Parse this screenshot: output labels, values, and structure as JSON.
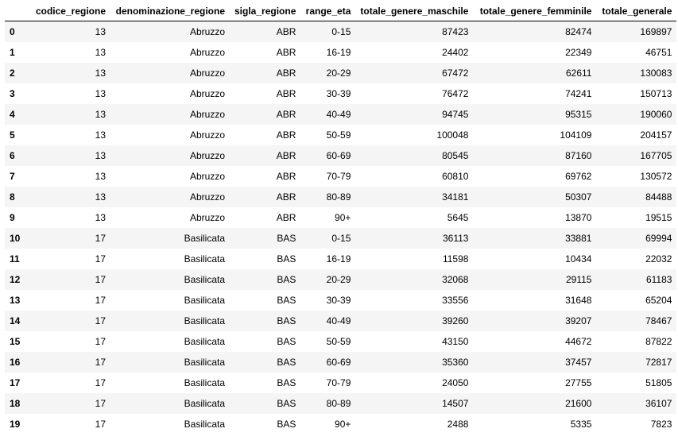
{
  "table": {
    "columns": [
      "",
      "codice_regione",
      "denominazione_regione",
      "sigla_regione",
      "range_eta",
      "totale_genere_maschile",
      "totale_genere_femminile",
      "totale_generale"
    ],
    "rows": [
      [
        "0",
        "13",
        "Abruzzo",
        "ABR",
        "0-15",
        "87423",
        "82474",
        "169897"
      ],
      [
        "1",
        "13",
        "Abruzzo",
        "ABR",
        "16-19",
        "24402",
        "22349",
        "46751"
      ],
      [
        "2",
        "13",
        "Abruzzo",
        "ABR",
        "20-29",
        "67472",
        "62611",
        "130083"
      ],
      [
        "3",
        "13",
        "Abruzzo",
        "ABR",
        "30-39",
        "76472",
        "74241",
        "150713"
      ],
      [
        "4",
        "13",
        "Abruzzo",
        "ABR",
        "40-49",
        "94745",
        "95315",
        "190060"
      ],
      [
        "5",
        "13",
        "Abruzzo",
        "ABR",
        "50-59",
        "100048",
        "104109",
        "204157"
      ],
      [
        "6",
        "13",
        "Abruzzo",
        "ABR",
        "60-69",
        "80545",
        "87160",
        "167705"
      ],
      [
        "7",
        "13",
        "Abruzzo",
        "ABR",
        "70-79",
        "60810",
        "69762",
        "130572"
      ],
      [
        "8",
        "13",
        "Abruzzo",
        "ABR",
        "80-89",
        "34181",
        "50307",
        "84488"
      ],
      [
        "9",
        "13",
        "Abruzzo",
        "ABR",
        "90+",
        "5645",
        "13870",
        "19515"
      ],
      [
        "10",
        "17",
        "Basilicata",
        "BAS",
        "0-15",
        "36113",
        "33881",
        "69994"
      ],
      [
        "11",
        "17",
        "Basilicata",
        "BAS",
        "16-19",
        "11598",
        "10434",
        "22032"
      ],
      [
        "12",
        "17",
        "Basilicata",
        "BAS",
        "20-29",
        "32068",
        "29115",
        "61183"
      ],
      [
        "13",
        "17",
        "Basilicata",
        "BAS",
        "30-39",
        "33556",
        "31648",
        "65204"
      ],
      [
        "14",
        "17",
        "Basilicata",
        "BAS",
        "40-49",
        "39260",
        "39207",
        "78467"
      ],
      [
        "15",
        "17",
        "Basilicata",
        "BAS",
        "50-59",
        "43150",
        "44672",
        "87822"
      ],
      [
        "16",
        "17",
        "Basilicata",
        "BAS",
        "60-69",
        "35360",
        "37457",
        "72817"
      ],
      [
        "17",
        "17",
        "Basilicata",
        "BAS",
        "70-79",
        "24050",
        "27755",
        "51805"
      ],
      [
        "18",
        "17",
        "Basilicata",
        "BAS",
        "80-89",
        "14507",
        "21600",
        "36107"
      ],
      [
        "19",
        "17",
        "Basilicata",
        "BAS",
        "90+",
        "2488",
        "5335",
        "7823"
      ]
    ]
  },
  "colors": {
    "row_stripe": "#f5f5f5",
    "header_rule": "#000000",
    "text": "#000000"
  }
}
